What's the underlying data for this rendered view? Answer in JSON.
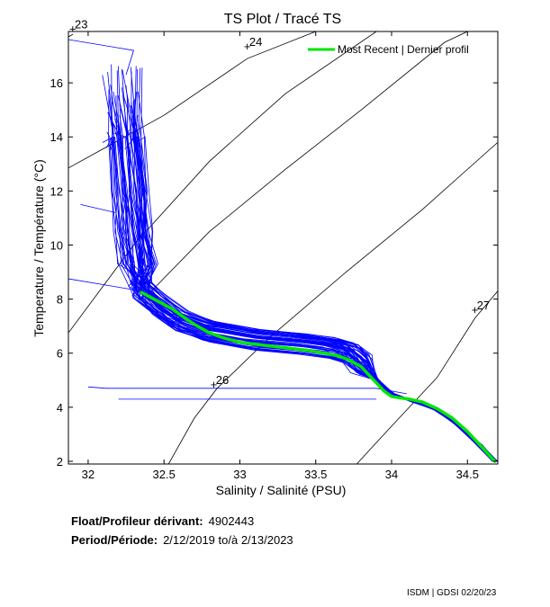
{
  "chart_data": {
    "type": "scatter",
    "title": "TS Plot / Tracé TS",
    "xlabel": "Salinity / Salinité (PSU)",
    "ylabel": "Temperature / Température (°C)",
    "xlim": [
      31.87,
      34.7
    ],
    "ylim": [
      1.9,
      17.9
    ],
    "xticks": [
      32,
      32.5,
      33,
      33.5,
      34,
      34.5
    ],
    "xtick_labels": [
      "32",
      "32.5",
      "33",
      "33.5",
      "34",
      "34.5"
    ],
    "yticks": [
      2,
      4,
      6,
      8,
      10,
      12,
      14,
      16
    ],
    "ytick_labels": [
      "2",
      "4",
      "6",
      "8",
      "10",
      "12",
      "14",
      "16"
    ],
    "grid": false,
    "legend_position": "top-right",
    "density_isolines": [
      {
        "label": "23",
        "label_at": [
          31.9,
          17.75
        ]
      },
      {
        "label": "24",
        "label_at": [
          33.05,
          17.1
        ]
      },
      {
        "label": "",
        "label_at": null
      },
      {
        "label": "26",
        "label_at": [
          32.83,
          4.6
        ]
      },
      {
        "label": "27",
        "label_at": [
          34.55,
          7.35
        ]
      }
    ],
    "isolines_drawn": [
      {
        "name": "sigma-23",
        "points": [
          [
            31.87,
            17.7
          ],
          [
            31.9,
            17.8
          ]
        ]
      },
      {
        "name": "sigma-24",
        "points": [
          [
            31.87,
            12.85
          ],
          [
            32.5,
            14.8
          ],
          [
            33.05,
            16.9
          ],
          [
            33.5,
            17.9
          ]
        ]
      },
      {
        "name": "sigma-25",
        "points": [
          [
            31.87,
            6.75
          ],
          [
            32.3,
            10.0
          ],
          [
            32.8,
            13.1
          ],
          [
            33.3,
            15.6
          ],
          [
            33.9,
            17.9
          ]
        ]
      },
      {
        "name": "sigma-25b",
        "points": [
          [
            32.4,
            8.2
          ],
          [
            32.8,
            10.5
          ],
          [
            33.3,
            12.8
          ],
          [
            33.8,
            15.0
          ],
          [
            34.35,
            17.5
          ],
          [
            34.5,
            17.9
          ]
        ]
      },
      {
        "name": "sigma-26",
        "points": [
          [
            32.53,
            1.9
          ],
          [
            32.7,
            3.6
          ],
          [
            32.85,
            4.7
          ],
          [
            33.2,
            6.6
          ],
          [
            33.7,
            9.0
          ],
          [
            34.2,
            11.3
          ],
          [
            34.7,
            13.8
          ]
        ]
      },
      {
        "name": "sigma-27",
        "points": [
          [
            33.77,
            1.9
          ],
          [
            34.0,
            3.3
          ],
          [
            34.3,
            5.1
          ],
          [
            34.55,
            7.3
          ],
          [
            34.7,
            8.3
          ]
        ]
      }
    ],
    "series": [
      {
        "name": "Most Recent | Dernier profil",
        "color": "#00e600",
        "x": [
          32.35,
          32.45,
          32.55,
          32.65,
          32.72,
          32.8,
          32.9,
          33.0,
          33.15,
          33.3,
          33.45,
          33.55,
          33.65,
          33.72,
          33.8,
          33.85,
          33.9,
          33.95,
          34.0,
          34.05,
          34.12,
          34.2,
          34.3,
          34.4,
          34.5,
          34.6,
          34.68
        ],
        "y": [
          8.25,
          7.95,
          7.65,
          7.25,
          7.0,
          6.75,
          6.55,
          6.4,
          6.3,
          6.2,
          6.1,
          6.0,
          5.9,
          5.75,
          5.5,
          5.2,
          4.9,
          4.6,
          4.4,
          4.35,
          4.3,
          4.2,
          3.95,
          3.6,
          3.1,
          2.5,
          2.0
        ]
      }
    ],
    "float_profiles_note": "",
    "float_color": "#0000ff"
  },
  "info": {
    "float_label": "Float/Profileur dérivant:",
    "float_value": "4902443",
    "period_label": "Period/Période:",
    "period_value": "2/12/2019  to/à  2/13/2023"
  },
  "footer": "ISDM | GDSI  02/20/23"
}
